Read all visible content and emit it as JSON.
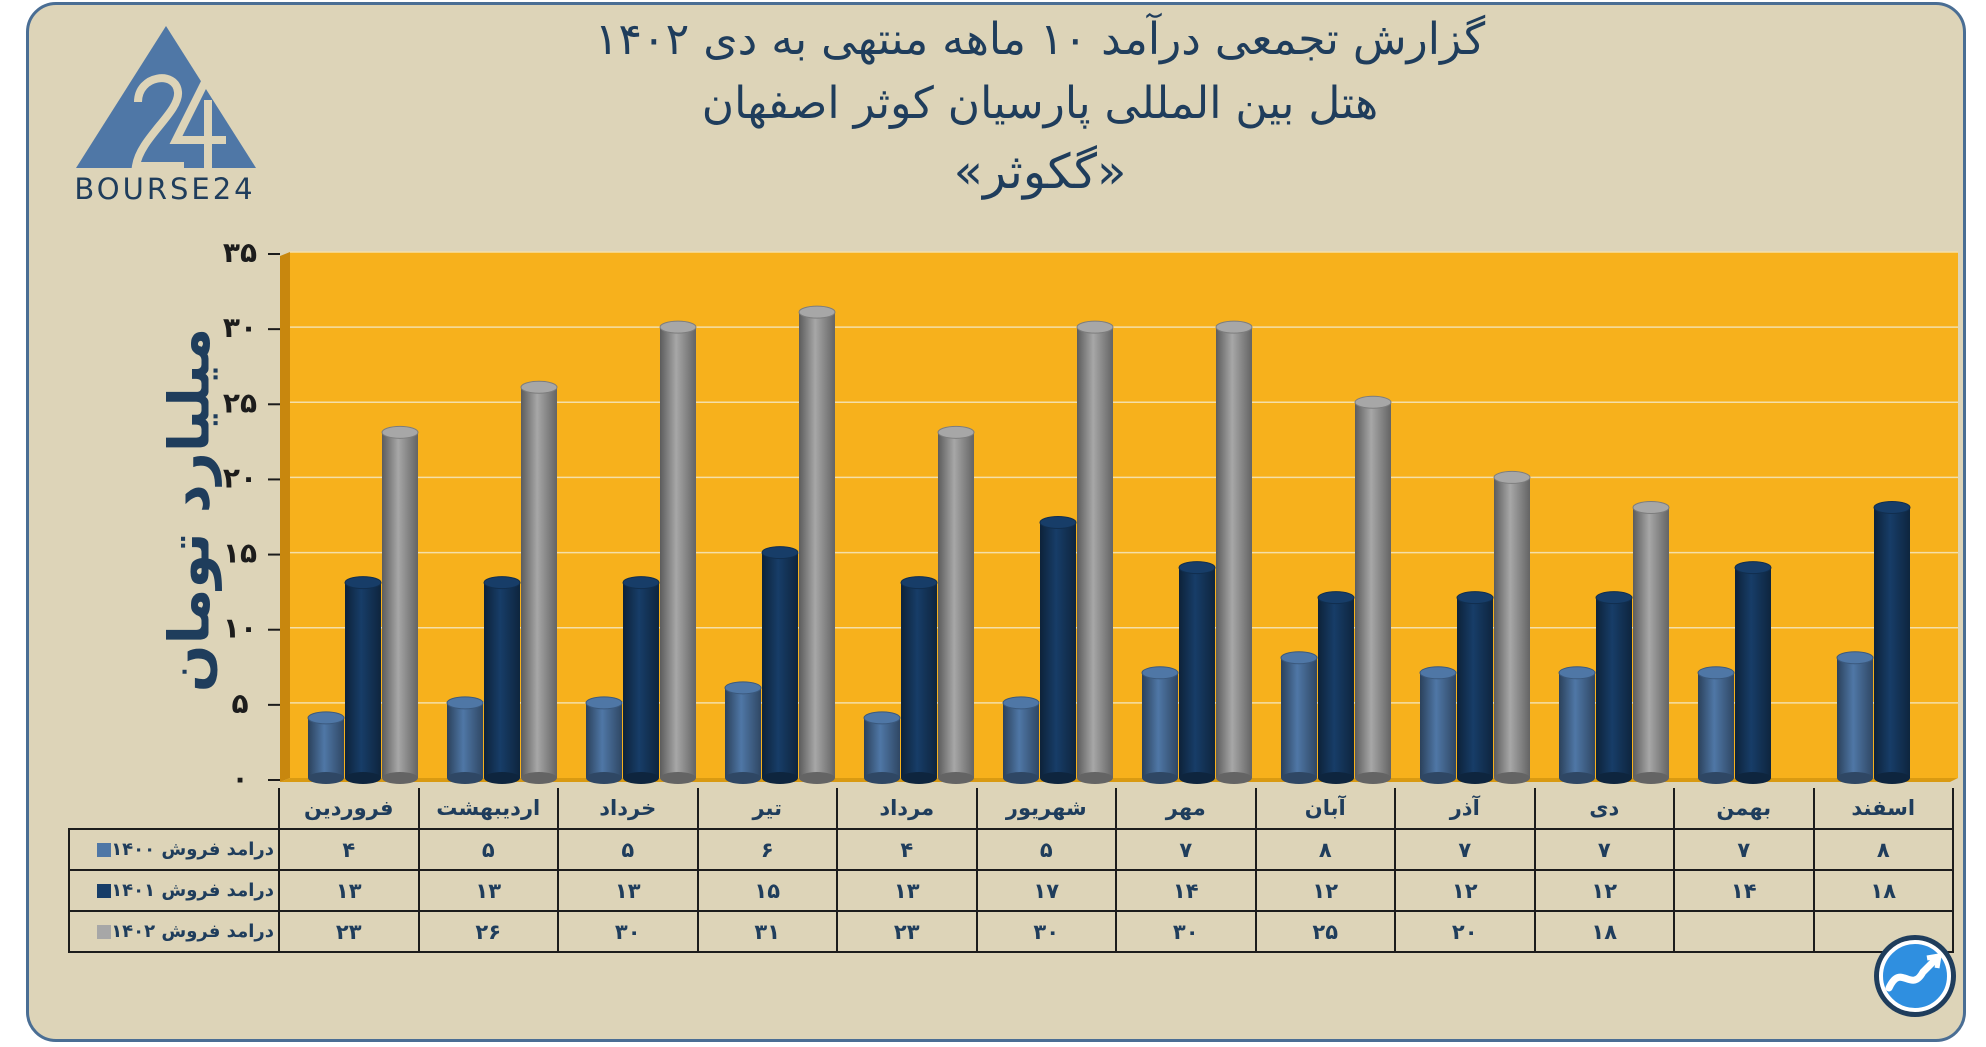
{
  "header": {
    "title_line1": "گزارش تجمعی درآمد ۱۰ ماهه منتهی به دی ۱۴۰۲",
    "title_line2": "هتل بین المللی پارسیان کوثر اصفهان",
    "title_line3": "«گکوثر»"
  },
  "logo": {
    "text": "BOURSE24",
    "icon": "bourse24-logo-icon"
  },
  "badge": {
    "icon": "chart-trend-icon"
  },
  "colors": {
    "background": "#ddd4b8",
    "plot_area": "#f7b11c",
    "series_1400": "#4f77a6",
    "series_1401": "#173d68",
    "series_1402": "#a7a7a7",
    "text": "#1f3d5c"
  },
  "chart_data": {
    "type": "bar",
    "ylabel": "میلیارد تومان",
    "ylim": [
      0,
      35
    ],
    "yticks": [
      "۰",
      "۵",
      "۱۰",
      "۱۵",
      "۲۰",
      "۲۵",
      "۳۰",
      "۳۵"
    ],
    "ytick_values": [
      0,
      5,
      10,
      15,
      20,
      25,
      30,
      35
    ],
    "grid": true,
    "categories": [
      "فروردین",
      "اردیبهشت",
      "خرداد",
      "تیر",
      "مرداد",
      "شهریور",
      "مهر",
      "آبان",
      "آذر",
      "دی",
      "بهمن",
      "اسفند"
    ],
    "series": [
      {
        "name": "درامد فروش ۱۴۰۰",
        "color": "#4f77a6",
        "values": [
          4,
          5,
          5,
          6,
          4,
          5,
          7,
          8,
          7,
          7,
          7,
          8
        ],
        "labels": [
          "۴",
          "۵",
          "۵",
          "۶",
          "۴",
          "۵",
          "۷",
          "۸",
          "۷",
          "۷",
          "۷",
          "۸"
        ]
      },
      {
        "name": "درامد فروش ۱۴۰۱",
        "color": "#173d68",
        "values": [
          13,
          13,
          13,
          15,
          13,
          17,
          14,
          12,
          12,
          12,
          14,
          18
        ],
        "labels": [
          "۱۳",
          "۱۳",
          "۱۳",
          "۱۵",
          "۱۳",
          "۱۷",
          "۱۴",
          "۱۲",
          "۱۲",
          "۱۲",
          "۱۴",
          "۱۸"
        ]
      },
      {
        "name": "درامد فروش ۱۴۰۲",
        "color": "#a7a7a7",
        "values": [
          23,
          26,
          30,
          31,
          23,
          30,
          30,
          25,
          20,
          18,
          null,
          null
        ],
        "labels": [
          "۲۳",
          "۲۶",
          "۳۰",
          "۳۱",
          "۲۳",
          "۳۰",
          "۳۰",
          "۲۵",
          "۲۰",
          "۱۸",
          "",
          ""
        ]
      }
    ]
  }
}
